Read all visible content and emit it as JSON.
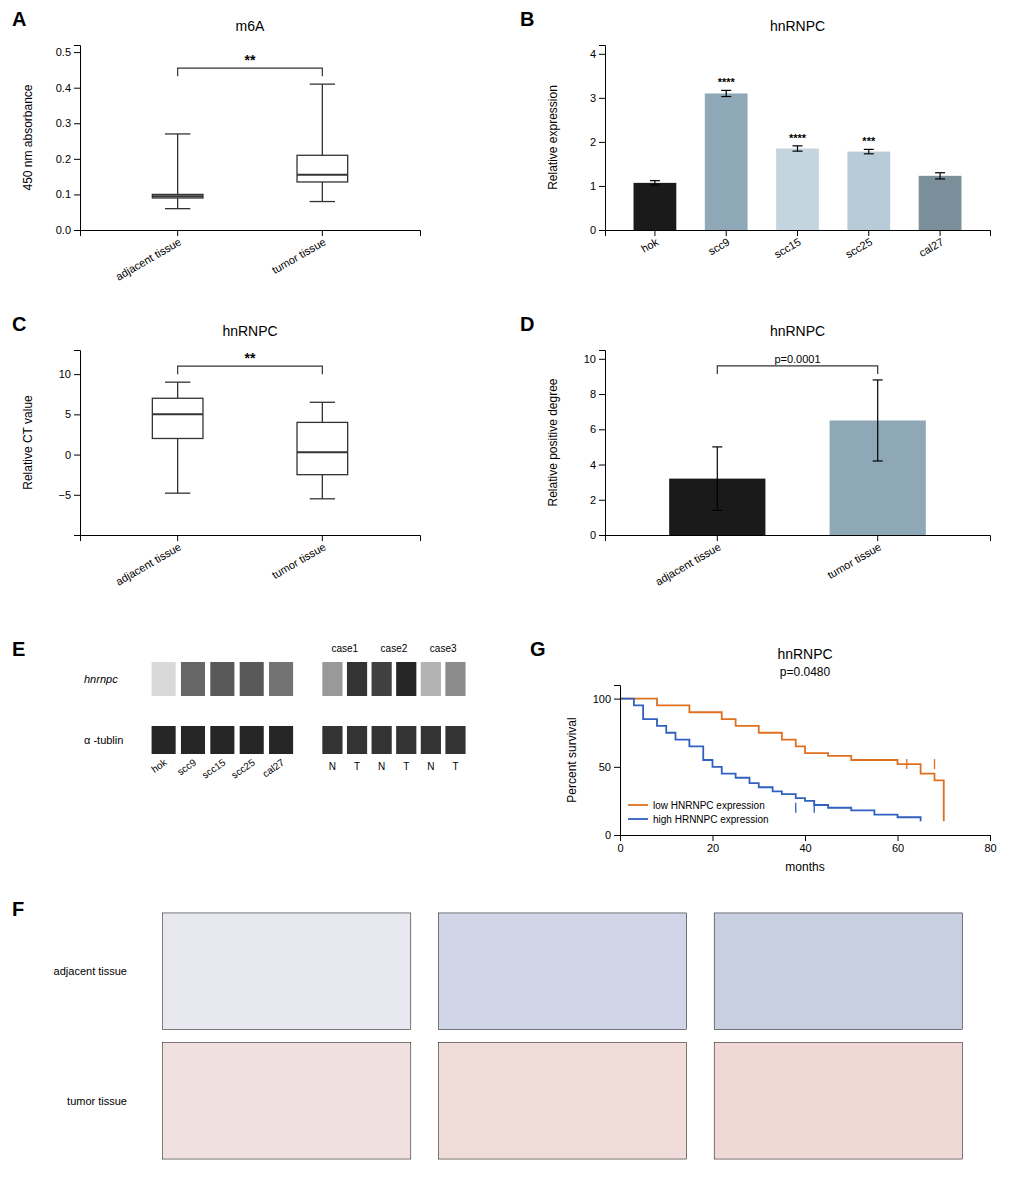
{
  "chart_data": [
    {
      "type": "box",
      "title": "m6A",
      "ylabel": "450 nm absorbance",
      "categories": [
        "adjacent tissue",
        "tumor tissue"
      ],
      "boxes": [
        {
          "whislo": 0.06,
          "q1": 0.09,
          "med": 0.095,
          "q3": 0.1,
          "whishi": 0.27
        },
        {
          "whislo": 0.08,
          "q1": 0.135,
          "med": 0.155,
          "q3": 0.21,
          "whishi": 0.41
        }
      ],
      "ylim": [
        0.0,
        0.52
      ],
      "yticks": [
        {
          "value": 0.0,
          "label": "0.0"
        },
        0.1,
        0.2,
        0.3,
        0.4,
        0.5
      ],
      "annotations": [
        "A",
        "**"
      ]
    },
    {
      "type": "bar",
      "title": "hnRNPC",
      "ylabel": "Relative expression",
      "categories": [
        "hok",
        "scc9",
        "scc15",
        "scc25",
        "cal27"
      ],
      "values": [
        1.07,
        3.1,
        1.85,
        1.78,
        1.23
      ],
      "errors": [
        0.05,
        0.07,
        0.06,
        0.05,
        0.07
      ],
      "colors": [
        "#1a1a1a",
        "#8fa8b8",
        "#c5d5df",
        "#b8ccd8",
        "#7a8f9a"
      ],
      "bar_labels": [
        null,
        "****",
        "****",
        "***",
        null
      ],
      "ylim": [
        0,
        4.2
      ],
      "yticks": [
        0,
        1,
        2,
        3,
        4
      ],
      "annotations": [
        "B"
      ]
    },
    {
      "type": "box",
      "title": "hnRNPC",
      "ylabel": "Relative CT value",
      "categories": [
        "adjacent tissue",
        "tumor tissue"
      ],
      "boxes": [
        {
          "whislo": -4.8,
          "q1": 2.0,
          "med": 5.0,
          "q3": 7.0,
          "whishi": 9.0
        },
        {
          "whislo": -5.5,
          "q1": -2.5,
          "med": 0.3,
          "q3": 4.0,
          "whishi": 6.5
        }
      ],
      "ylim": [
        -10,
        13
      ],
      "yticks": [
        -5,
        0,
        5,
        10
      ],
      "annotations": [
        "C",
        "**"
      ]
    },
    {
      "type": "bar",
      "title": "hnRNPC",
      "subtitle": "p=0.0001",
      "ylabel": "Relative positive degree",
      "categories": [
        "adjacent tissue",
        "tumor tissue"
      ],
      "values": [
        3.2,
        6.5
      ],
      "errors": [
        1.8,
        2.3
      ],
      "colors": [
        "#1a1a1a",
        "#8fa8b8"
      ],
      "ylim": [
        0,
        10.5
      ],
      "yticks": [
        0,
        2,
        4,
        6,
        8,
        10
      ],
      "annotations": [
        "D"
      ]
    },
    {
      "type": "blot",
      "rows": [
        "hnrnpc",
        "α -tublin"
      ],
      "blots": [
        {
          "categories": [
            "hok",
            "scc9",
            "scc15",
            "scc25",
            "cal27"
          ],
          "colors": [
            "#d9d9d9",
            "#666666",
            "#595959",
            "#595959",
            "#737373"
          ],
          "control_color": "#262626"
        },
        {
          "groups": [
            "case1",
            "case2",
            "case3"
          ],
          "categories": [
            "N",
            "T",
            "N",
            "T",
            "N",
            "T"
          ],
          "colors": [
            "#999999",
            "#333333",
            "#404040",
            "#262626",
            "#b3b3b3",
            "#8c8c8c"
          ],
          "control_color": "#333333"
        }
      ],
      "annotations": [
        "E"
      ]
    },
    {
      "type": "line",
      "title": "hnRNPC",
      "subtitle": "p=0.0480",
      "xlabel": "months",
      "ylabel": "Percent survival",
      "series": [
        {
          "name": "low HNRNPC expression",
          "color": "#e07020",
          "x": [
            0,
            5,
            8,
            10,
            15,
            18,
            22,
            25,
            30,
            35,
            38,
            40,
            45,
            50,
            55,
            60,
            65,
            68,
            70
          ],
          "values": [
            100,
            100,
            95,
            95,
            90,
            90,
            85,
            80,
            75,
            70,
            65,
            60,
            58,
            55,
            55,
            52,
            45,
            40,
            10
          ],
          "censored_x": [
            62,
            68
          ],
          "censored_values": [
            52,
            52
          ]
        },
        {
          "name": "high HRNNPC expression",
          "color": "#3060c0",
          "x": [
            0,
            3,
            5,
            8,
            10,
            12,
            15,
            18,
            20,
            22,
            25,
            28,
            30,
            33,
            35,
            38,
            40,
            42,
            45,
            50,
            55,
            60,
            65
          ],
          "values": [
            100,
            95,
            85,
            80,
            75,
            70,
            65,
            55,
            50,
            45,
            42,
            38,
            35,
            32,
            30,
            27,
            25,
            22,
            20,
            18,
            15,
            13,
            10
          ],
          "censored_x": [
            38,
            42
          ],
          "censored_values": [
            20,
            20
          ]
        }
      ],
      "xlim": [
        0,
        80
      ],
      "ylim": [
        0,
        110
      ],
      "xticks": [
        0,
        20,
        40,
        60,
        80
      ],
      "yticks": [
        0,
        50,
        100
      ],
      "legend": "lower left",
      "annotations": [
        "G"
      ]
    },
    {
      "type": "image_grid",
      "rows": [
        "adjacent tissue",
        "tumor tissue"
      ],
      "colors": [
        [
          "#e8e8f0",
          "#d0d5e8",
          "#c8d0e0"
        ],
        [
          "#f0e0e0",
          "#f0dcd8",
          "#f0d8d5"
        ]
      ],
      "annotations": [
        "F"
      ]
    }
  ]
}
